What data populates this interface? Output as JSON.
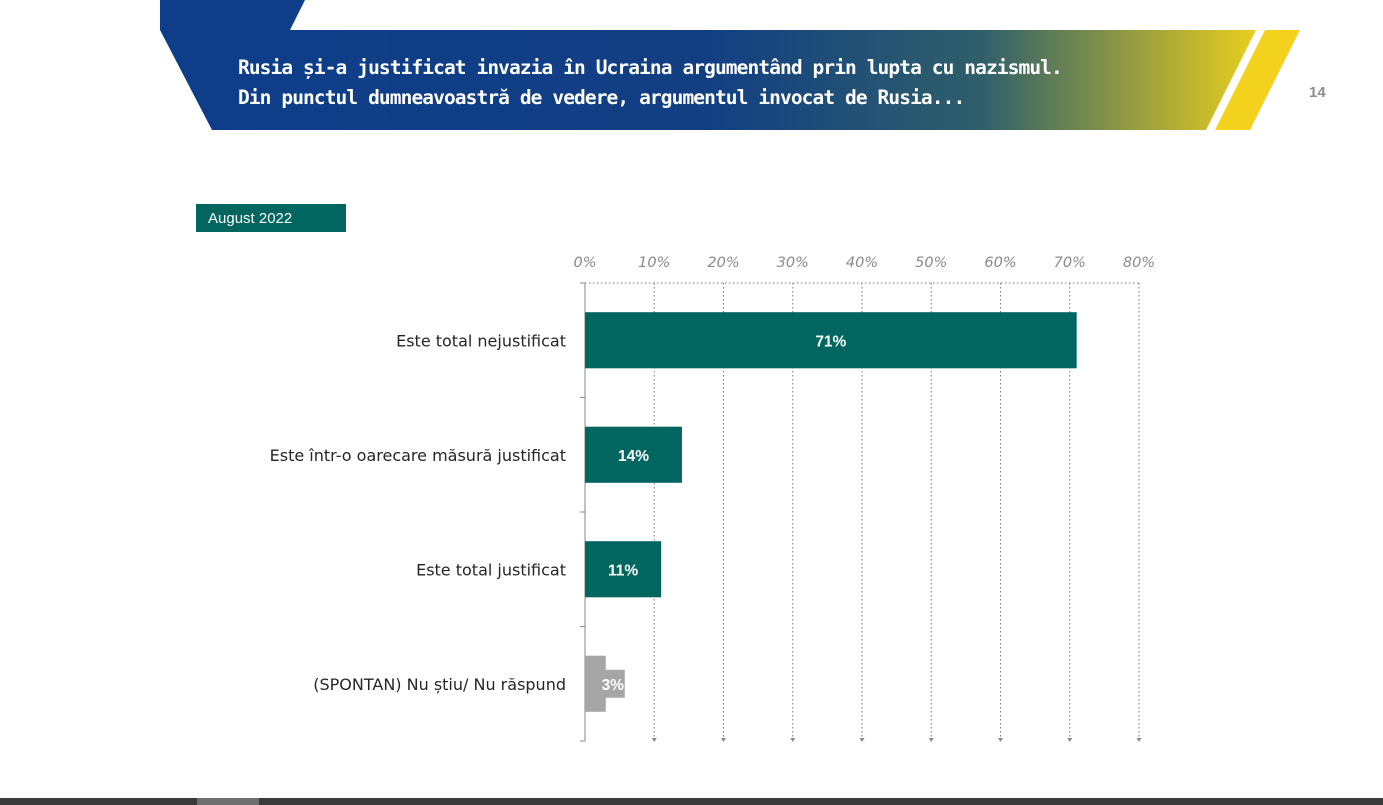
{
  "header": {
    "title_line1": "Rusia și-a justificat invazia în Ucraina argumentând prin lupta cu nazismul.",
    "title_line2": "Din punctul dumneavoastră de vedere, argumentul invocat de Rusia...",
    "page_number": "14",
    "colors": {
      "banner_start": "#0e3d8a",
      "banner_mid": "#2f5f6a",
      "banner_end": "#e8cf1e",
      "stripe": "#f2d21c"
    }
  },
  "period_badge": "August 2022",
  "chart_data": {
    "type": "bar",
    "orientation": "horizontal",
    "categories": [
      "Este total nejustificat",
      "Este într-o oarecare măsură justificat",
      "Este total justificat",
      "(SPONTAN) Nu știu/ Nu răspund"
    ],
    "values": [
      71,
      14,
      11,
      3
    ],
    "value_labels": [
      "71%",
      "14%",
      "11%",
      "3%"
    ],
    "bar_colors": [
      "#00665f",
      "#00665f",
      "#00665f",
      "#a6a6a6"
    ],
    "xlim": [
      0,
      80
    ],
    "tick_values": [
      0,
      10,
      20,
      30,
      40,
      50,
      60,
      70,
      80
    ],
    "tick_labels": [
      "0%",
      "10%",
      "20%",
      "30%",
      "40%",
      "50%",
      "60%",
      "70%",
      "80%"
    ],
    "gridlines": "dotted-vertical",
    "axis_position": "top",
    "legend": "none"
  }
}
